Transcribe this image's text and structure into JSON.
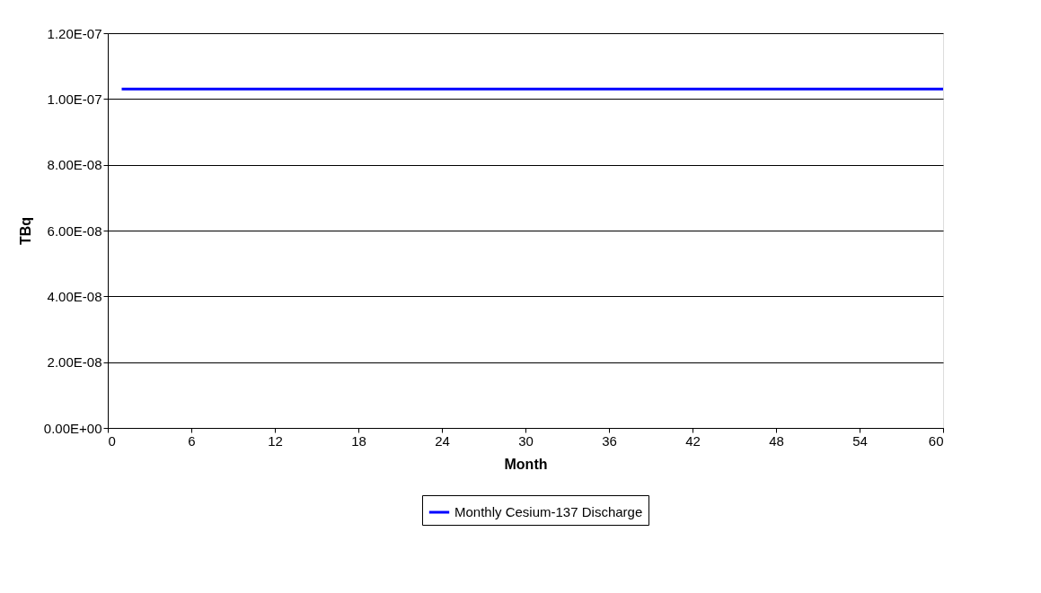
{
  "chart_data": {
    "type": "line",
    "xlabel": "Month",
    "ylabel": "TBq",
    "x": [
      1,
      60
    ],
    "series": [
      {
        "name": "Monthly Cesium-137 Discharge",
        "color": "#0000ff",
        "values": [
          1.03e-07,
          1.03e-07
        ]
      }
    ],
    "xlim": [
      0,
      60
    ],
    "xticks": [
      0,
      6,
      12,
      18,
      24,
      30,
      36,
      42,
      48,
      54,
      60
    ],
    "ylim": [
      0,
      1.2e-07
    ],
    "yticks": [
      {
        "value": 0,
        "label": "0.00E+00"
      },
      {
        "value": 2e-08,
        "label": "2.00E-08"
      },
      {
        "value": 4e-08,
        "label": "4.00E-08"
      },
      {
        "value": 6e-08,
        "label": "6.00E-08"
      },
      {
        "value": 8e-08,
        "label": "8.00E-08"
      },
      {
        "value": 1e-07,
        "label": "1.00E-07"
      },
      {
        "value": 1.2e-07,
        "label": "1.20E-07"
      }
    ],
    "grid": "y",
    "legend": "bottom",
    "marker": "none",
    "line_style": "solid"
  }
}
